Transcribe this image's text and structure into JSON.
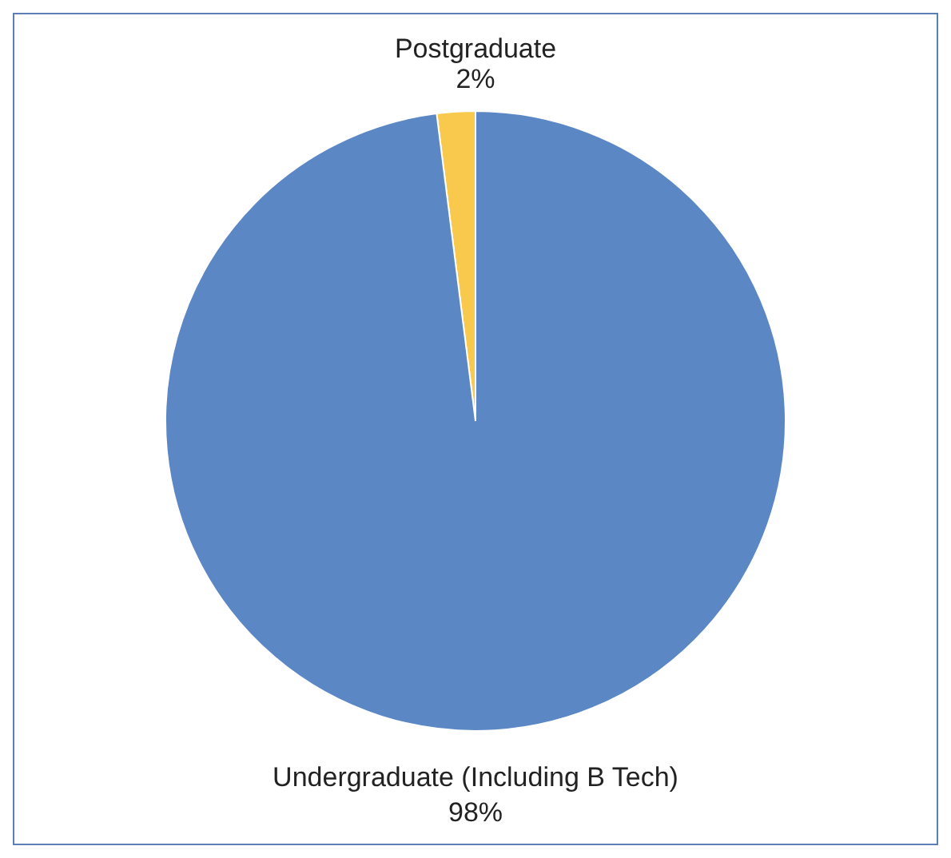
{
  "chart_data": {
    "type": "pie",
    "categories": [
      "Postgraduate",
      "Undergraduate (Including B Tech)"
    ],
    "values": [
      2,
      98
    ],
    "value_labels": [
      "2%",
      "98%"
    ],
    "colors": [
      "#f9c94e",
      "#5b87c5"
    ]
  }
}
